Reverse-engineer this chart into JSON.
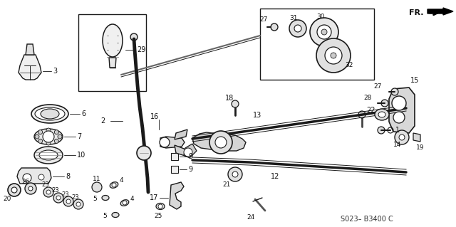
{
  "bg_color": "#ffffff",
  "fig_width": 6.4,
  "fig_height": 3.19,
  "dpi": 100,
  "diagram_code": "S023– B3400 C",
  "fr_label": "FR.",
  "line_color": "#1a1a1a",
  "text_color": "#111111"
}
